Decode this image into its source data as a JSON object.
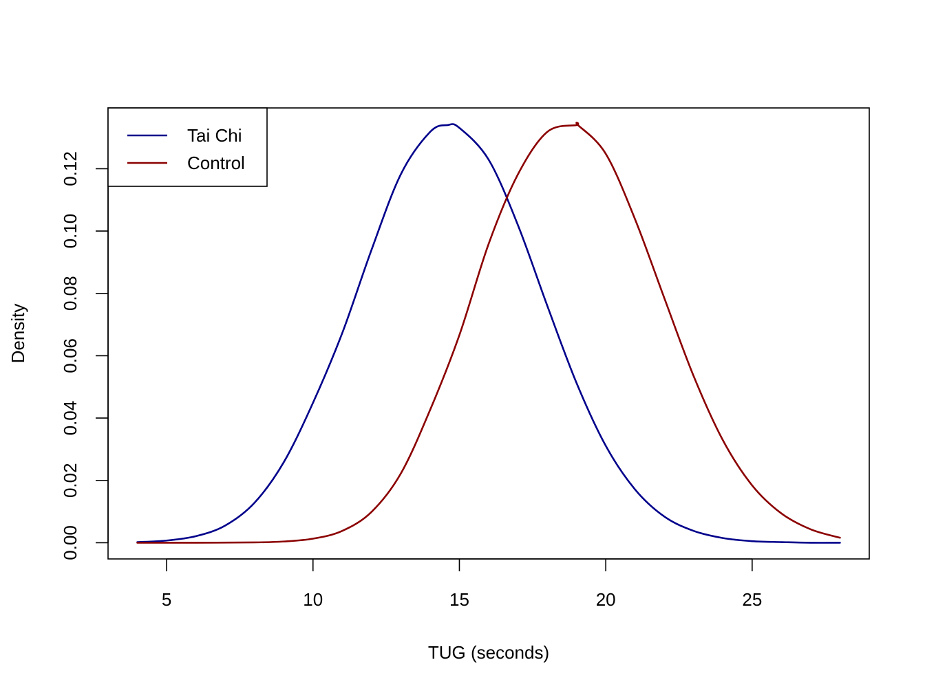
{
  "chart_data": {
    "type": "line",
    "title": "",
    "xlabel": "TUG (seconds)",
    "ylabel": "Density",
    "xlim": [
      3,
      29
    ],
    "ylim": [
      -0.0052,
      0.1395
    ],
    "x_ticks": [
      5,
      10,
      15,
      20,
      25
    ],
    "y_ticks": [
      0.0,
      0.02,
      0.04,
      0.06,
      0.08,
      0.1,
      0.12
    ],
    "y_tick_labels": [
      "0.00",
      "0.02",
      "0.04",
      "0.06",
      "0.08",
      "0.10",
      "0.12"
    ],
    "grid": false,
    "legend_position": "top-left",
    "series": [
      {
        "name": "Tai Chi",
        "color": "#00008B",
        "x": [
          4,
          5,
          6,
          7,
          8,
          9,
          10,
          11,
          12,
          13,
          14,
          14.6,
          15,
          16,
          17,
          18,
          19,
          20,
          21,
          22,
          23,
          24,
          25,
          26,
          27,
          28
        ],
        "y": [
          0.0002,
          0.0007,
          0.0021,
          0.0055,
          0.0128,
          0.0258,
          0.0449,
          0.0673,
          0.094,
          0.1182,
          0.1318,
          0.134,
          0.1331,
          0.1229,
          0.1019,
          0.0761,
          0.0513,
          0.0311,
          0.0171,
          0.0084,
          0.0038,
          0.0015,
          0.0005,
          0.0002,
          0.0,
          0.0
        ]
      },
      {
        "name": "Control",
        "color": "#8B0000",
        "x": [
          4,
          6,
          8,
          9,
          10,
          11,
          12,
          13,
          14,
          15,
          16,
          17,
          18,
          19,
          19.05,
          20,
          21,
          22,
          23,
          24,
          25,
          26,
          27,
          28
        ],
        "y": [
          0.0,
          0.0,
          0.0001,
          0.0004,
          0.0013,
          0.0038,
          0.0099,
          0.0222,
          0.0426,
          0.0666,
          0.0959,
          0.1182,
          0.1318,
          0.134,
          0.134,
          0.1248,
          0.1038,
          0.0785,
          0.0535,
          0.0329,
          0.0184,
          0.0094,
          0.0043,
          0.0016
        ]
      }
    ]
  }
}
